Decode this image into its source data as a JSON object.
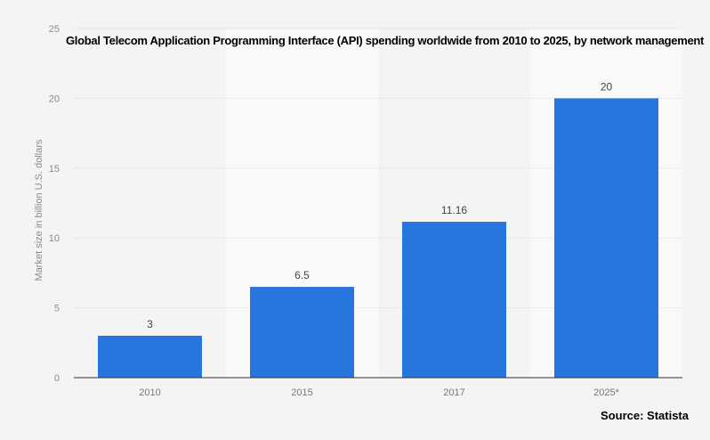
{
  "chart_data": {
    "type": "bar",
    "title": "Global Telecom Application Programming Interface (API) spending worldwide from 2010 to 2025, by network management",
    "xlabel": "",
    "ylabel": "Market size in billion U.S. dollars",
    "categories": [
      "2010",
      "2015",
      "2017",
      "2025*"
    ],
    "values": [
      3,
      6.5,
      11.16,
      20
    ],
    "data_labels": [
      "3",
      "6.5",
      "11.16",
      "20"
    ],
    "ylim": [
      0,
      25
    ],
    "yticks": [
      0,
      5,
      10,
      15,
      20,
      25
    ],
    "grid": true,
    "bar_color": "#2876dd",
    "source": "Source: Statista"
  }
}
